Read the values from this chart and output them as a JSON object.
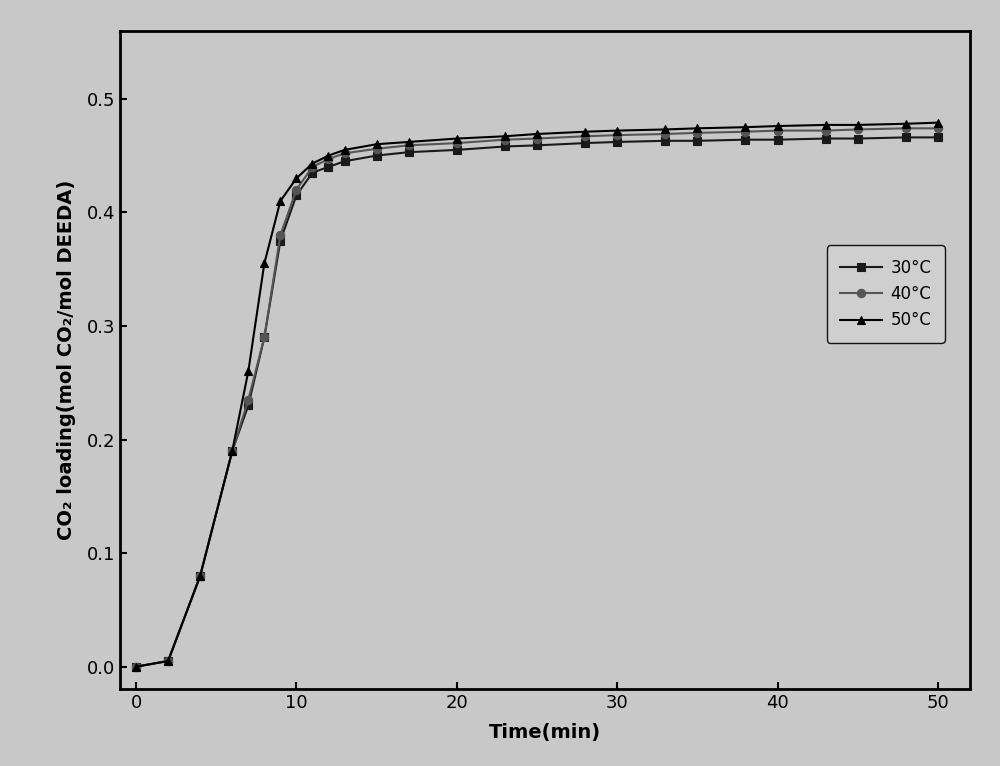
{
  "series": {
    "30C": {
      "x": [
        0,
        2,
        4,
        6,
        7,
        8,
        9,
        10,
        11,
        12,
        13,
        15,
        17,
        20,
        23,
        25,
        28,
        30,
        33,
        35,
        38,
        40,
        43,
        45,
        48,
        50
      ],
      "y": [
        0.0,
        0.005,
        0.08,
        0.19,
        0.23,
        0.29,
        0.375,
        0.415,
        0.435,
        0.44,
        0.445,
        0.45,
        0.453,
        0.455,
        0.458,
        0.459,
        0.461,
        0.462,
        0.463,
        0.463,
        0.464,
        0.464,
        0.465,
        0.465,
        0.466,
        0.466
      ],
      "marker": "s",
      "color": "#1a1a1a",
      "label": "30°C"
    },
    "40C": {
      "x": [
        0,
        2,
        4,
        6,
        7,
        8,
        9,
        10,
        11,
        12,
        13,
        15,
        17,
        20,
        23,
        25,
        28,
        30,
        33,
        35,
        38,
        40,
        43,
        45,
        48,
        50
      ],
      "y": [
        0.0,
        0.005,
        0.08,
        0.19,
        0.235,
        0.29,
        0.38,
        0.42,
        0.44,
        0.447,
        0.452,
        0.456,
        0.459,
        0.461,
        0.464,
        0.465,
        0.467,
        0.468,
        0.469,
        0.47,
        0.471,
        0.472,
        0.472,
        0.473,
        0.474,
        0.474
      ],
      "marker": "o",
      "color": "#555555",
      "label": "40°C"
    },
    "50C": {
      "x": [
        0,
        2,
        4,
        6,
        7,
        8,
        9,
        10,
        11,
        12,
        13,
        15,
        17,
        20,
        23,
        25,
        28,
        30,
        33,
        35,
        38,
        40,
        43,
        45,
        48,
        50
      ],
      "y": [
        0.0,
        0.005,
        0.08,
        0.19,
        0.26,
        0.355,
        0.41,
        0.43,
        0.443,
        0.45,
        0.455,
        0.46,
        0.462,
        0.465,
        0.467,
        0.469,
        0.471,
        0.472,
        0.473,
        0.474,
        0.475,
        0.476,
        0.477,
        0.477,
        0.478,
        0.479
      ],
      "marker": "^",
      "color": "#000000",
      "label": "50°C"
    }
  },
  "xlabel": "Time(min)",
  "ylabel": "CO₂ loading(mol CO₂/mol DEEDA)",
  "xlim": [
    -1,
    52
  ],
  "ylim": [
    -0.02,
    0.56
  ],
  "xticks": [
    0,
    10,
    20,
    30,
    40,
    50
  ],
  "yticks": [
    0.0,
    0.1,
    0.2,
    0.3,
    0.4,
    0.5
  ],
  "background_color": "#c8c8c8",
  "plot_bg_color": "#c8c8c8",
  "markersize": 6,
  "linewidth": 1.5,
  "fontsize_label": 14,
  "fontsize_tick": 13,
  "fontsize_legend": 12
}
